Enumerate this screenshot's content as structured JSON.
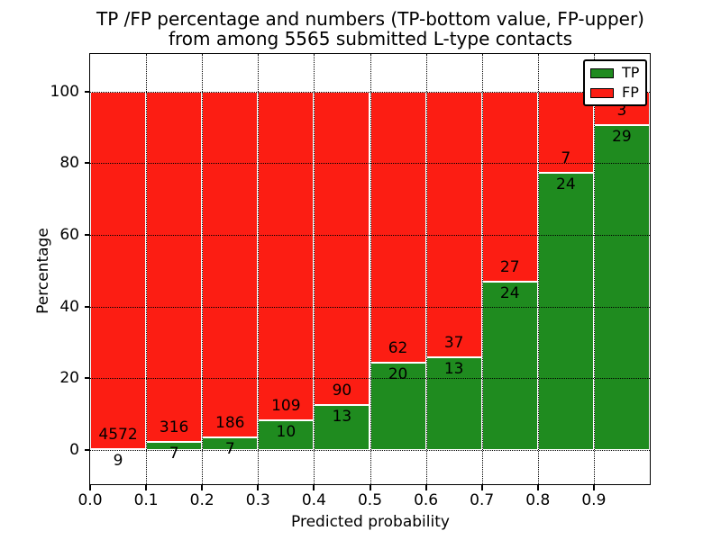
{
  "title": {
    "line1": "TP /FP percentage and numbers (TP-bottom value, FP-upper)",
    "line2": "from among 5565 submitted L-type contacts"
  },
  "chart_data": {
    "type": "bar",
    "stacked": true,
    "description": "Stacked 100% bars per predicted-probability bin: TP percentage (green, bottom) and FP percentage (red, top). Numeric labels are raw counts: FP count above the TP/FP boundary, TP count below it.",
    "xlabel": "Predicted probability",
    "ylabel": "Percentage",
    "total_contacts": 5565,
    "categories": [
      "0.0-0.1",
      "0.1-0.2",
      "0.2-0.3",
      "0.3-0.4",
      "0.4-0.5",
      "0.5-0.6",
      "0.6-0.7",
      "0.7-0.8",
      "0.8-0.9",
      "0.9-1.0"
    ],
    "bins": [
      {
        "x_start": 0.0,
        "tp_count": 9,
        "fp_count": 4572,
        "tp_pct": 0.2
      },
      {
        "x_start": 0.1,
        "tp_count": 7,
        "fp_count": 316,
        "tp_pct": 2.2
      },
      {
        "x_start": 0.2,
        "tp_count": 7,
        "fp_count": 186,
        "tp_pct": 3.6
      },
      {
        "x_start": 0.3,
        "tp_count": 10,
        "fp_count": 109,
        "tp_pct": 8.4
      },
      {
        "x_start": 0.4,
        "tp_count": 13,
        "fp_count": 90,
        "tp_pct": 12.6
      },
      {
        "x_start": 0.5,
        "tp_count": 20,
        "fp_count": 62,
        "tp_pct": 24.4
      },
      {
        "x_start": 0.6,
        "tp_count": 13,
        "fp_count": 37,
        "tp_pct": 26.0
      },
      {
        "x_start": 0.7,
        "tp_count": 24,
        "fp_count": 27,
        "tp_pct": 47.1
      },
      {
        "x_start": 0.8,
        "tp_count": 24,
        "fp_count": 7,
        "tp_pct": 77.4
      },
      {
        "x_start": 0.9,
        "tp_count": 29,
        "fp_count": 3,
        "tp_pct": 90.6
      }
    ],
    "series": [
      {
        "name": "TP",
        "color": "#1f8b1f",
        "counts": [
          9,
          7,
          7,
          10,
          13,
          20,
          13,
          24,
          24,
          29
        ]
      },
      {
        "name": "FP",
        "color": "#fc1d13",
        "counts": [
          4572,
          316,
          186,
          109,
          90,
          62,
          37,
          27,
          7,
          3
        ]
      }
    ],
    "xticks": [
      "0.0",
      "0.1",
      "0.2",
      "0.3",
      "0.4",
      "0.5",
      "0.6",
      "0.7",
      "0.8",
      "0.9"
    ],
    "yticks": [
      "0",
      "20",
      "40",
      "60",
      "80",
      "100"
    ],
    "xlim": [
      0.0,
      1.0
    ],
    "ylim": [
      -9.5,
      110.5
    ],
    "bin_width": 0.1,
    "grid": "dotted black gridlines at every tick, drawn above bars",
    "legend": {
      "position": "upper-right",
      "entries": [
        {
          "label": "TP",
          "color": "#1f8b1f"
        },
        {
          "label": "FP",
          "color": "#fc1d13"
        }
      ]
    }
  }
}
